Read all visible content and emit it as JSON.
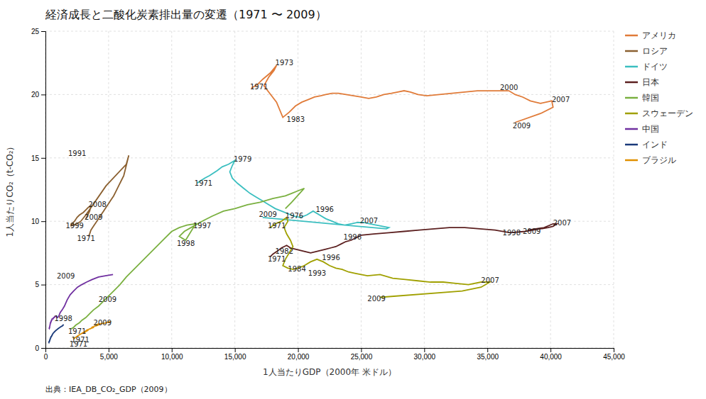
{
  "chart_data": {
    "type": "line",
    "title": "経済成長と二酸化炭素排出量の変遷（1971 〜 2009）",
    "x_label": "1人当たりGDP（2000年 米ドル）",
    "y_label": "1人当たりCO₂（t-CO₂）",
    "source": "出典：IEA_DB_CO₂_GDP（2009）",
    "xlim": [
      0,
      45000
    ],
    "ylim": [
      0,
      25
    ],
    "xticks": [
      0,
      {
        "value": 5000,
        "label": "5,000"
      },
      {
        "value": 10000,
        "label": "10,000"
      },
      {
        "value": 15000,
        "label": "15,000"
      },
      {
        "value": 20000,
        "label": "20,000"
      },
      {
        "value": 25000,
        "label": "25,000"
      },
      {
        "value": 30000,
        "label": "30,000"
      },
      {
        "value": 35000,
        "label": "35,000"
      },
      {
        "value": 40000,
        "label": "40,000"
      },
      {
        "value": 45000,
        "label": "45,000"
      }
    ],
    "yticks": [
      0,
      5,
      10,
      15,
      20,
      25
    ],
    "grid": true,
    "legend": "right",
    "series": [
      {
        "name": "アメリカ",
        "color": "#e07b39",
        "x": [
          16300,
          16800,
          17200,
          17800,
          18300,
          18100,
          17700,
          17300,
          17600,
          18300,
          18800,
          19300,
          19800,
          20300,
          20800,
          21300,
          21800,
          22200,
          22700,
          23200,
          23800,
          24400,
          25000,
          25600,
          26200,
          26800,
          27400,
          27900,
          28400,
          28900,
          29500,
          30200,
          31200,
          32200,
          33200,
          34200,
          35200,
          36200,
          36700,
          37200,
          37800,
          38400,
          39200,
          40100,
          40200,
          39200,
          37200
        ],
        "values": [
          20.5,
          20.8,
          21.2,
          21.7,
          22.3,
          21.9,
          21.4,
          20.7,
          20.3,
          19.4,
          18.2,
          18.6,
          19.1,
          19.4,
          19.6,
          19.8,
          19.9,
          20.0,
          20.1,
          20.1,
          20.0,
          19.9,
          19.8,
          19.7,
          19.8,
          20.0,
          20.1,
          20.2,
          20.3,
          20.2,
          20.0,
          19.9,
          20.0,
          20.1,
          20.2,
          20.3,
          20.3,
          20.3,
          20.3,
          20.0,
          19.8,
          19.5,
          19.3,
          19.5,
          19.0,
          18.5,
          17.8
        ]
      },
      {
        "name": "ロシア",
        "color": "#8b6030",
        "x": [
          3400,
          3500,
          3600,
          3800,
          4000,
          4200,
          4400,
          4600,
          4800,
          5000,
          5200,
          5400,
          5600,
          5800,
          6000,
          6200,
          6300,
          6400,
          6500,
          6600,
          6400,
          4800,
          3900,
          3200,
          2800,
          2500,
          2300,
          2200,
          2100,
          2000,
          2100,
          2300,
          2500,
          2700,
          3000,
          3200,
          3400,
          3600,
          3500,
          3200
        ],
        "values": [
          8.8,
          9.0,
          9.3,
          9.6,
          9.9,
          10.2,
          10.5,
          10.8,
          11.1,
          11.4,
          11.7,
          12.0,
          12.4,
          12.8,
          13.2,
          13.6,
          14.0,
          14.4,
          14.8,
          15.2,
          14.5,
          12.8,
          11.5,
          10.5,
          10.0,
          9.8,
          9.7,
          9.8,
          9.7,
          9.6,
          9.8,
          10.0,
          10.3,
          10.5,
          10.7,
          10.9,
          11.1,
          11.2,
          10.8,
          10.2
        ]
      },
      {
        "name": "ドイツ",
        "color": "#3bbfc0",
        "x": [
          12000,
          12300,
          12600,
          13000,
          13300,
          13600,
          14000,
          14500,
          15000,
          14800,
          14600,
          14800,
          15200,
          15700,
          16200,
          16700,
          17200,
          17700,
          18200,
          18700,
          19200,
          19700,
          20200,
          20700,
          21200,
          21700,
          22200,
          22700,
          23200,
          23700,
          24200,
          24700,
          25200,
          25700,
          26200,
          26700,
          27200,
          27000,
          17200
        ],
        "values": [
          13.0,
          13.2,
          13.4,
          13.6,
          13.8,
          14.0,
          14.3,
          14.5,
          14.8,
          14.4,
          13.9,
          13.4,
          13.0,
          12.6,
          12.2,
          11.9,
          11.6,
          11.3,
          11.0,
          10.8,
          10.6,
          10.4,
          10.3,
          10.5,
          10.8,
          10.5,
          10.2,
          10.0,
          9.8,
          9.7,
          9.8,
          9.9,
          9.9,
          9.8,
          9.7,
          9.6,
          9.5,
          9.4,
          10.3
        ]
      },
      {
        "name": "日本",
        "color": "#5c2020",
        "x": [
          17800,
          18000,
          18300,
          18700,
          19100,
          19400,
          19800,
          20200,
          20600,
          21000,
          21400,
          21800,
          22200,
          22600,
          23000,
          23400,
          23800,
          24200,
          24600,
          25000,
          26000,
          27200,
          28400,
          29600,
          30800,
          32000,
          33200,
          34400,
          35600,
          36800,
          38000,
          38600,
          39200,
          39800,
          40200,
          40500,
          40200,
          39500,
          38200
        ],
        "values": [
          7.2,
          7.4,
          7.6,
          7.9,
          8.1,
          7.9,
          7.8,
          7.7,
          7.6,
          7.5,
          7.6,
          7.7,
          7.8,
          7.9,
          8.0,
          8.2,
          8.4,
          8.5,
          8.7,
          8.9,
          9.0,
          9.1,
          9.2,
          9.3,
          9.4,
          9.5,
          9.5,
          9.4,
          9.3,
          9.1,
          9.2,
          9.3,
          9.4,
          9.5,
          9.6,
          9.8,
          9.8,
          9.5,
          9.3
        ]
      },
      {
        "name": "韓国",
        "color": "#7ab040",
        "x": [
          2000,
          2200,
          2400,
          2700,
          2900,
          3200,
          3500,
          3800,
          4200,
          4600,
          5000,
          5400,
          5900,
          6400,
          7000,
          7600,
          8200,
          8800,
          9400,
          10000,
          10600,
          11200,
          11900,
          11100,
          10600,
          11000,
          11700,
          12400,
          13200,
          14100,
          15000,
          16000,
          17000,
          18000,
          19000,
          19500,
          20000,
          20500,
          19500,
          19000
        ],
        "values": [
          1.5,
          1.6,
          1.8,
          2.0,
          2.2,
          2.4,
          2.7,
          3.0,
          3.3,
          3.7,
          4.1,
          4.5,
          5.0,
          5.6,
          6.2,
          6.8,
          7.4,
          8.0,
          8.6,
          9.2,
          9.5,
          9.7,
          9.8,
          8.5,
          8.8,
          9.2,
          9.6,
          10.0,
          10.4,
          10.8,
          11.0,
          11.3,
          11.5,
          11.8,
          12.0,
          12.2,
          12.4,
          12.6,
          11.5,
          11.0
        ]
      },
      {
        "name": "スウェーデン",
        "color": "#a0a000",
        "x": [
          17800,
          18200,
          18700,
          19100,
          19200,
          18900,
          19100,
          19400,
          19600,
          19300,
          19000,
          18800,
          19200,
          19600,
          20000,
          20500,
          21000,
          21500,
          22000,
          22500,
          23000,
          23500,
          24000,
          24500,
          25000,
          25500,
          26500,
          27500,
          28500,
          29500,
          30500,
          31500,
          32500,
          33500,
          34500,
          35200,
          34500,
          33000,
          26500
        ],
        "values": [
          9.5,
          9.8,
          10.0,
          10.3,
          10.0,
          9.5,
          9.0,
          8.5,
          8.0,
          7.5,
          7.0,
          6.5,
          6.3,
          6.2,
          6.3,
          6.5,
          6.8,
          7.0,
          6.8,
          6.5,
          6.3,
          6.2,
          6.0,
          5.9,
          5.8,
          5.7,
          5.8,
          5.5,
          5.4,
          5.3,
          5.2,
          5.2,
          5.1,
          5.0,
          5.2,
          5.2,
          4.8,
          4.5,
          4.0
        ]
      },
      {
        "name": "中国",
        "color": "#7030a0",
        "x": [
          280,
          295,
          310,
          325,
          340,
          360,
          378,
          398,
          418,
          438,
          460,
          482,
          506,
          530,
          556,
          582,
          610,
          640,
          672,
          706,
          742,
          780,
          820,
          862,
          906,
          952,
          1050,
          1170,
          1320,
          1500,
          1720,
          1960,
          2230,
          2540,
          2880,
          3260,
          3700,
          4200,
          4750,
          5350
        ],
        "values": [
          1.5,
          1.5,
          1.6,
          1.6,
          1.7,
          1.8,
          1.9,
          2.0,
          2.0,
          2.1,
          2.1,
          2.2,
          2.2,
          2.3,
          2.3,
          2.3,
          2.3,
          2.4,
          2.4,
          2.4,
          2.5,
          2.5,
          2.5,
          2.5,
          2.4,
          2.4,
          2.5,
          2.8,
          3.0,
          3.3,
          3.8,
          4.2,
          4.5,
          4.8,
          5.0,
          5.2,
          5.4,
          5.6,
          5.7,
          5.8
        ]
      },
      {
        "name": "インド",
        "color": "#1a3a7a",
        "x": [
          250,
          258,
          266,
          274,
          283,
          292,
          301,
          311,
          321,
          332,
          343,
          354,
          366,
          378,
          391,
          404,
          418,
          432,
          447,
          462,
          478,
          494,
          511,
          529,
          547,
          566,
          606,
          648,
          693,
          741,
          792,
          847,
          905,
          967,
          1033,
          1104,
          1180,
          1260,
          1348,
          1441
        ],
        "values": [
          0.4,
          0.4,
          0.4,
          0.45,
          0.5,
          0.5,
          0.5,
          0.5,
          0.55,
          0.6,
          0.6,
          0.65,
          0.7,
          0.7,
          0.75,
          0.8,
          0.8,
          0.85,
          0.9,
          0.9,
          0.9,
          0.95,
          1.0,
          1.0,
          1.05,
          1.1,
          1.15,
          1.2,
          1.25,
          1.3,
          1.35,
          1.4,
          1.45,
          1.5,
          1.55,
          1.6,
          1.65,
          1.7,
          1.75,
          1.85
        ]
      },
      {
        "name": "ブラジル",
        "color": "#e09000",
        "x": [
          2200,
          2300,
          2420,
          2550,
          2700,
          2870,
          3060,
          3270,
          3400,
          3230,
          3100,
          3040,
          3110,
          3200,
          3300,
          3420,
          3540,
          3670,
          3800,
          3800,
          3720,
          3640,
          3710,
          3810,
          3920,
          4040,
          4160,
          4080,
          3940,
          4040,
          4160,
          4280,
          4420,
          4570,
          4720,
          4880,
          5000,
          5100,
          5200,
          5100
        ],
        "values": [
          0.7,
          0.78,
          0.86,
          0.95,
          1.05,
          1.15,
          1.25,
          1.38,
          1.42,
          1.32,
          1.22,
          1.2,
          1.28,
          1.36,
          1.42,
          1.47,
          1.52,
          1.57,
          1.62,
          1.65,
          1.65,
          1.6,
          1.65,
          1.68,
          1.72,
          1.75,
          1.8,
          1.82,
          1.84,
          1.85,
          1.88,
          1.9,
          1.92,
          1.95,
          1.97,
          2.0,
          2.05,
          2.08,
          2.1,
          2.08
        ]
      }
    ],
    "annotations": [
      {
        "text": "1971",
        "x": 16200,
        "y": 20.6
      },
      {
        "text": "1973",
        "x": 18200,
        "y": 22.5
      },
      {
        "text": "1983",
        "x": 19100,
        "y": 18.0
      },
      {
        "text": "2000",
        "x": 36000,
        "y": 20.5
      },
      {
        "text": "2007",
        "x": 40100,
        "y": 19.6
      },
      {
        "text": "2009",
        "x": 37000,
        "y": 17.5
      },
      {
        "text": "1991",
        "x": 1800,
        "y": 15.3
      },
      {
        "text": "2008",
        "x": 3400,
        "y": 11.3
      },
      {
        "text": "2009",
        "x": 3100,
        "y": 10.3
      },
      {
        "text": "1999",
        "x": 1600,
        "y": 9.6
      },
      {
        "text": "1971",
        "x": 2500,
        "y": 8.6
      },
      {
        "text": "1971",
        "x": 11800,
        "y": 13.0
      },
      {
        "text": "1979",
        "x": 14900,
        "y": 14.9
      },
      {
        "text": "2009",
        "x": 16900,
        "y": 10.5
      },
      {
        "text": "1996",
        "x": 21400,
        "y": 10.9
      },
      {
        "text": "2007",
        "x": 24900,
        "y": 10.0
      },
      {
        "text": "1971",
        "x": 17600,
        "y": 7.0
      },
      {
        "text": "1982",
        "x": 18200,
        "y": 7.6
      },
      {
        "text": "1996",
        "x": 23600,
        "y": 8.7
      },
      {
        "text": "2009",
        "x": 37800,
        "y": 9.2
      },
      {
        "text": "2007",
        "x": 40200,
        "y": 9.85
      },
      {
        "text": "1998",
        "x": 36200,
        "y": 9.05
      },
      {
        "text": "1971",
        "x": 1800,
        "y": 1.3
      },
      {
        "text": "1997",
        "x": 11700,
        "y": 9.6
      },
      {
        "text": "1998",
        "x": 10400,
        "y": 8.2
      },
      {
        "text": "2009",
        "x": 4200,
        "y": 3.8
      },
      {
        "text": "1971",
        "x": 17600,
        "y": 9.6
      },
      {
        "text": "1976",
        "x": 19000,
        "y": 10.4
      },
      {
        "text": "1984",
        "x": 19200,
        "y": 6.2
      },
      {
        "text": "1993",
        "x": 20800,
        "y": 5.9
      },
      {
        "text": "1996",
        "x": 21900,
        "y": 7.1
      },
      {
        "text": "2007",
        "x": 34500,
        "y": 5.3
      },
      {
        "text": "2009",
        "x": 25500,
        "y": 3.85
      },
      {
        "text": "1998",
        "x": 700,
        "y": 2.3
      },
      {
        "text": "2009",
        "x": 900,
        "y": 5.65
      },
      {
        "text": "1971",
        "x": 1900,
        "y": 0.3
      },
      {
        "text": "1971",
        "x": 2050,
        "y": 0.6
      },
      {
        "text": "2009",
        "x": 3800,
        "y": 1.95
      }
    ]
  }
}
